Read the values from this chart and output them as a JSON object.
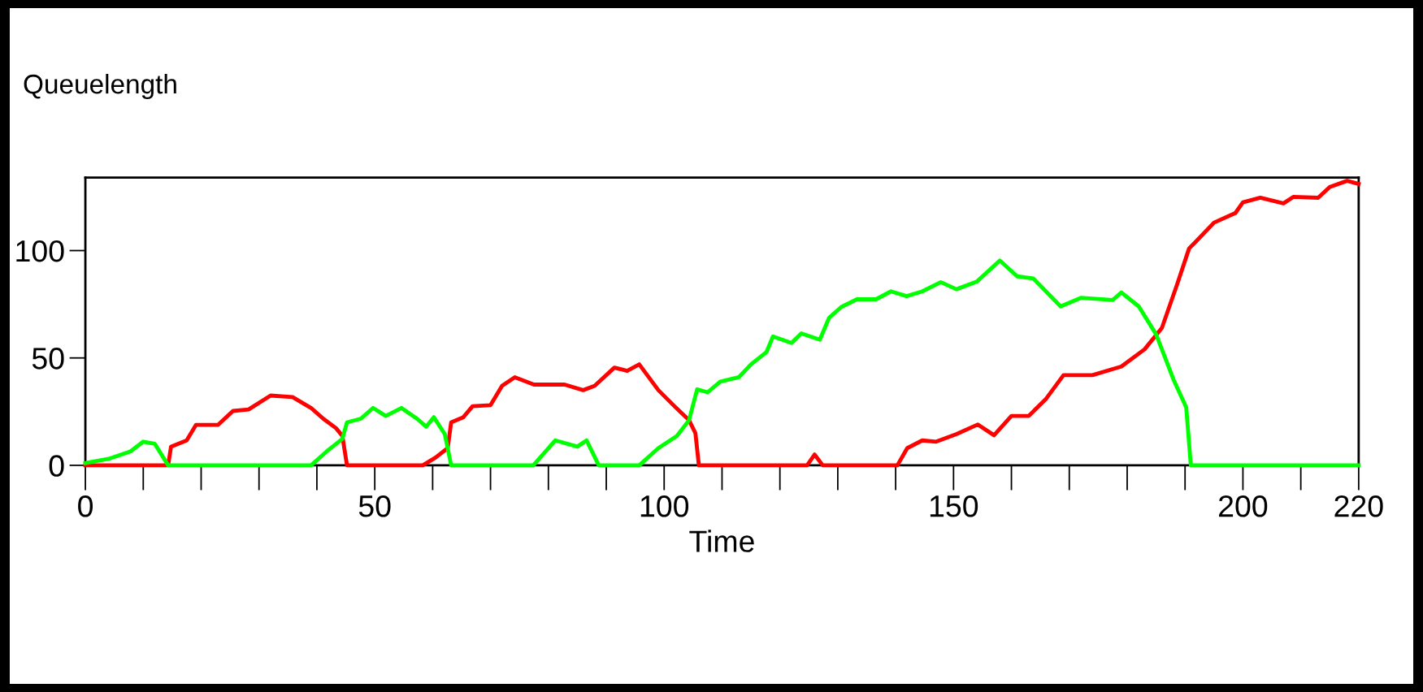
{
  "chart_data": {
    "type": "line",
    "ylabel": "Queuelength",
    "xlabel": "Time",
    "xlim": [
      0,
      220
    ],
    "ylim": [
      0,
      134
    ],
    "xticks": [
      0,
      50,
      100,
      150,
      200,
      220
    ],
    "yticks": [
      0,
      50,
      100
    ],
    "grid": false,
    "marker": "none",
    "line_style": "solid",
    "series": [
      {
        "color": "#ff0000",
        "x": [
          0,
          14.3,
          14.8,
          17.5,
          19.1,
          22.9,
          25.5,
          28.2,
          32,
          35.8,
          39,
          41.1,
          43.3,
          44.4,
          45.2,
          58.3,
          60.5,
          62.6,
          63.2,
          65.3,
          66.9,
          70,
          72,
          74.2,
          77.5,
          82.8,
          86,
          88,
          91.4,
          93.6,
          95.7,
          99,
          101.6,
          104.3,
          105.4,
          106,
          124.7,
          126,
          127.4,
          140.3,
          142,
          144.6,
          147,
          150.5,
          154.2,
          157,
          160,
          163,
          166,
          169,
          174,
          179,
          183,
          186,
          188.6,
          190.7,
          191.8,
          195,
          198.7,
          200,
          203,
          207,
          208.7,
          213,
          215,
          218,
          220
        ],
        "values": [
          0,
          0,
          8.7,
          11.6,
          18.8,
          18.8,
          25.3,
          26,
          32.5,
          31.8,
          26.7,
          21.7,
          17.3,
          13.7,
          0,
          0,
          3.6,
          8,
          20,
          22.4,
          27.5,
          28,
          37,
          41,
          37.6,
          37.6,
          35,
          37,
          45.5,
          44,
          47,
          35,
          28,
          21,
          15,
          0,
          0,
          5,
          0,
          0,
          8,
          11.6,
          11,
          14.5,
          19,
          14,
          23,
          23,
          31,
          42,
          42,
          46,
          54,
          64,
          84,
          101,
          104,
          113,
          117.5,
          122.5,
          124.6,
          122,
          125,
          124.6,
          129.6,
          132.5,
          131
        ]
      },
      {
        "color": "#00ff00",
        "x": [
          0,
          4,
          7.8,
          10,
          12,
          14.3,
          39,
          41.7,
          44.4,
          45.2,
          47.6,
          49.7,
          51.9,
          54.6,
          57.3,
          58.9,
          60.2,
          62.1,
          63.2,
          77.4,
          81.2,
          85,
          86.6,
          88.7,
          95.7,
          99,
          102.2,
          104.3,
          105.7,
          107.5,
          109.7,
          112.9,
          115,
          117.7,
          118.8,
          122,
          123.7,
          126.9,
          128.5,
          130.6,
          133.3,
          136.6,
          139.2,
          141.9,
          144.6,
          147.8,
          150.5,
          154,
          158,
          161,
          163.8,
          168.5,
          172,
          177.5,
          179,
          182,
          185,
          188,
          190.2,
          191,
          220
        ],
        "values": [
          1,
          3,
          6.5,
          11,
          10,
          0,
          0,
          6.5,
          12.3,
          20,
          21.7,
          26.7,
          23,
          26.7,
          21.7,
          18,
          22.4,
          14.5,
          0,
          0,
          11.6,
          8.7,
          11.6,
          0,
          0,
          8,
          13.7,
          21,
          35.4,
          34,
          39,
          41,
          47,
          52.8,
          60,
          57,
          61.4,
          58.5,
          68.7,
          73.7,
          77.3,
          77.3,
          81,
          78.8,
          81,
          85.3,
          82,
          85.5,
          95.4,
          88,
          87,
          74,
          78,
          77,
          80.5,
          74,
          61,
          40,
          27,
          0,
          0
        ]
      }
    ]
  }
}
